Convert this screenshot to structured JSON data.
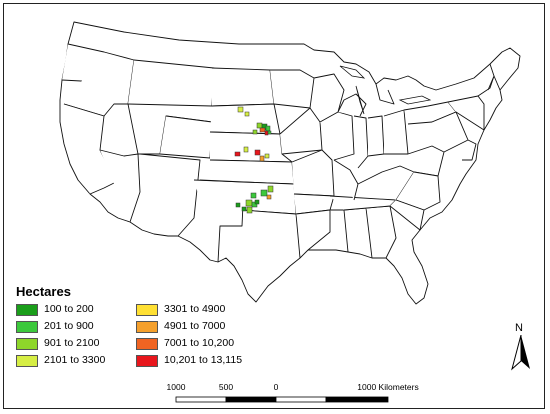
{
  "map": {
    "title": "",
    "state_fill": "#ffffff",
    "state_stroke": "#111111",
    "background": "#ffffff"
  },
  "legend": {
    "title": "Hectares",
    "items": [
      {
        "label": "100 to 200",
        "color": "#1a9e1a"
      },
      {
        "label": "201 to 900",
        "color": "#3cc83c"
      },
      {
        "label": "901 to 2100",
        "color": "#8ed62a"
      },
      {
        "label": "2101 to 3300",
        "color": "#d6ee44"
      },
      {
        "label": "3301 to 4900",
        "color": "#ffe033"
      },
      {
        "label": "4901 to 7000",
        "color": "#f5a02c"
      },
      {
        "label": "7001 to 10,200",
        "color": "#f06422"
      },
      {
        "label": "10,201 to 13,115",
        "color": "#e8161c"
      }
    ]
  },
  "north_arrow": {
    "label": "N"
  },
  "scale_bar": {
    "ticks": [
      "1000",
      "500",
      "0",
      "1000 Kilometers"
    ]
  }
}
